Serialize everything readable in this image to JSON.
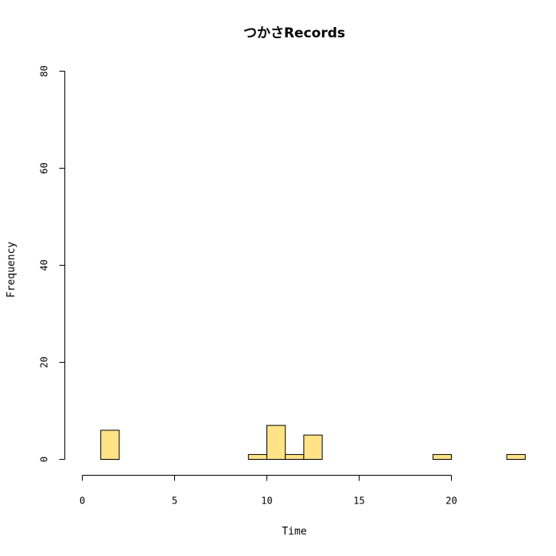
{
  "chart_data": {
    "type": "bar",
    "subtype": "histogram",
    "title": "つかさRecords",
    "xlabel": "Time",
    "ylabel": "Frequency",
    "xlim": [
      0,
      24
    ],
    "ylim": [
      0,
      80
    ],
    "xticks": [
      0,
      5,
      10,
      15,
      20
    ],
    "yticks": [
      0,
      20,
      40,
      60,
      80
    ],
    "bin_width": 1,
    "bins": [
      {
        "start": 0,
        "end": 1,
        "count": 0
      },
      {
        "start": 1,
        "end": 2,
        "count": 6
      },
      {
        "start": 2,
        "end": 3,
        "count": 0
      },
      {
        "start": 3,
        "end": 4,
        "count": 0
      },
      {
        "start": 4,
        "end": 5,
        "count": 0
      },
      {
        "start": 5,
        "end": 6,
        "count": 0
      },
      {
        "start": 6,
        "end": 7,
        "count": 0
      },
      {
        "start": 7,
        "end": 8,
        "count": 0
      },
      {
        "start": 8,
        "end": 9,
        "count": 0
      },
      {
        "start": 9,
        "end": 10,
        "count": 1
      },
      {
        "start": 10,
        "end": 11,
        "count": 7
      },
      {
        "start": 11,
        "end": 12,
        "count": 1
      },
      {
        "start": 12,
        "end": 13,
        "count": 5
      },
      {
        "start": 13,
        "end": 14,
        "count": 0
      },
      {
        "start": 14,
        "end": 15,
        "count": 0
      },
      {
        "start": 15,
        "end": 16,
        "count": 0
      },
      {
        "start": 16,
        "end": 17,
        "count": 0
      },
      {
        "start": 17,
        "end": 18,
        "count": 0
      },
      {
        "start": 18,
        "end": 19,
        "count": 0
      },
      {
        "start": 19,
        "end": 20,
        "count": 1
      },
      {
        "start": 20,
        "end": 21,
        "count": 0
      },
      {
        "start": 21,
        "end": 22,
        "count": 0
      },
      {
        "start": 22,
        "end": 23,
        "count": 0
      },
      {
        "start": 23,
        "end": 24,
        "count": 1
      }
    ],
    "bar_color": "#ffe386",
    "grid": false,
    "legend": "none"
  }
}
